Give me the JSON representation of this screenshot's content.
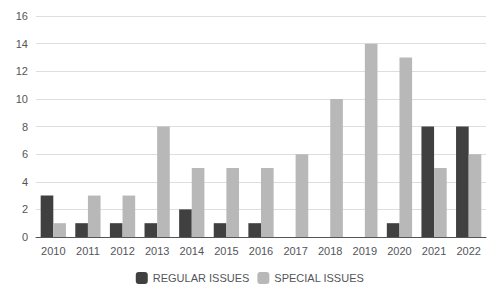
{
  "chart_data": {
    "type": "bar",
    "categories": [
      "2010",
      "2011",
      "2012",
      "2013",
      "2014",
      "2015",
      "2016",
      "2017",
      "2018",
      "2019",
      "2020",
      "2021",
      "2022"
    ],
    "series": [
      {
        "name": "REGULAR ISSUES",
        "color": "#404040",
        "values": [
          3,
          1,
          1,
          1,
          2,
          1,
          1,
          0,
          0,
          0,
          1,
          8,
          8
        ]
      },
      {
        "name": "SPECIAL ISSUES",
        "color": "#b8b8b8",
        "values": [
          1,
          3,
          3,
          8,
          5,
          5,
          5,
          6,
          10,
          14,
          13,
          5,
          6
        ]
      }
    ],
    "ylim": [
      0,
      16
    ],
    "yticks": [
      0,
      2,
      4,
      6,
      8,
      10,
      12,
      14,
      16
    ],
    "grid": true,
    "legend": "bottom"
  }
}
